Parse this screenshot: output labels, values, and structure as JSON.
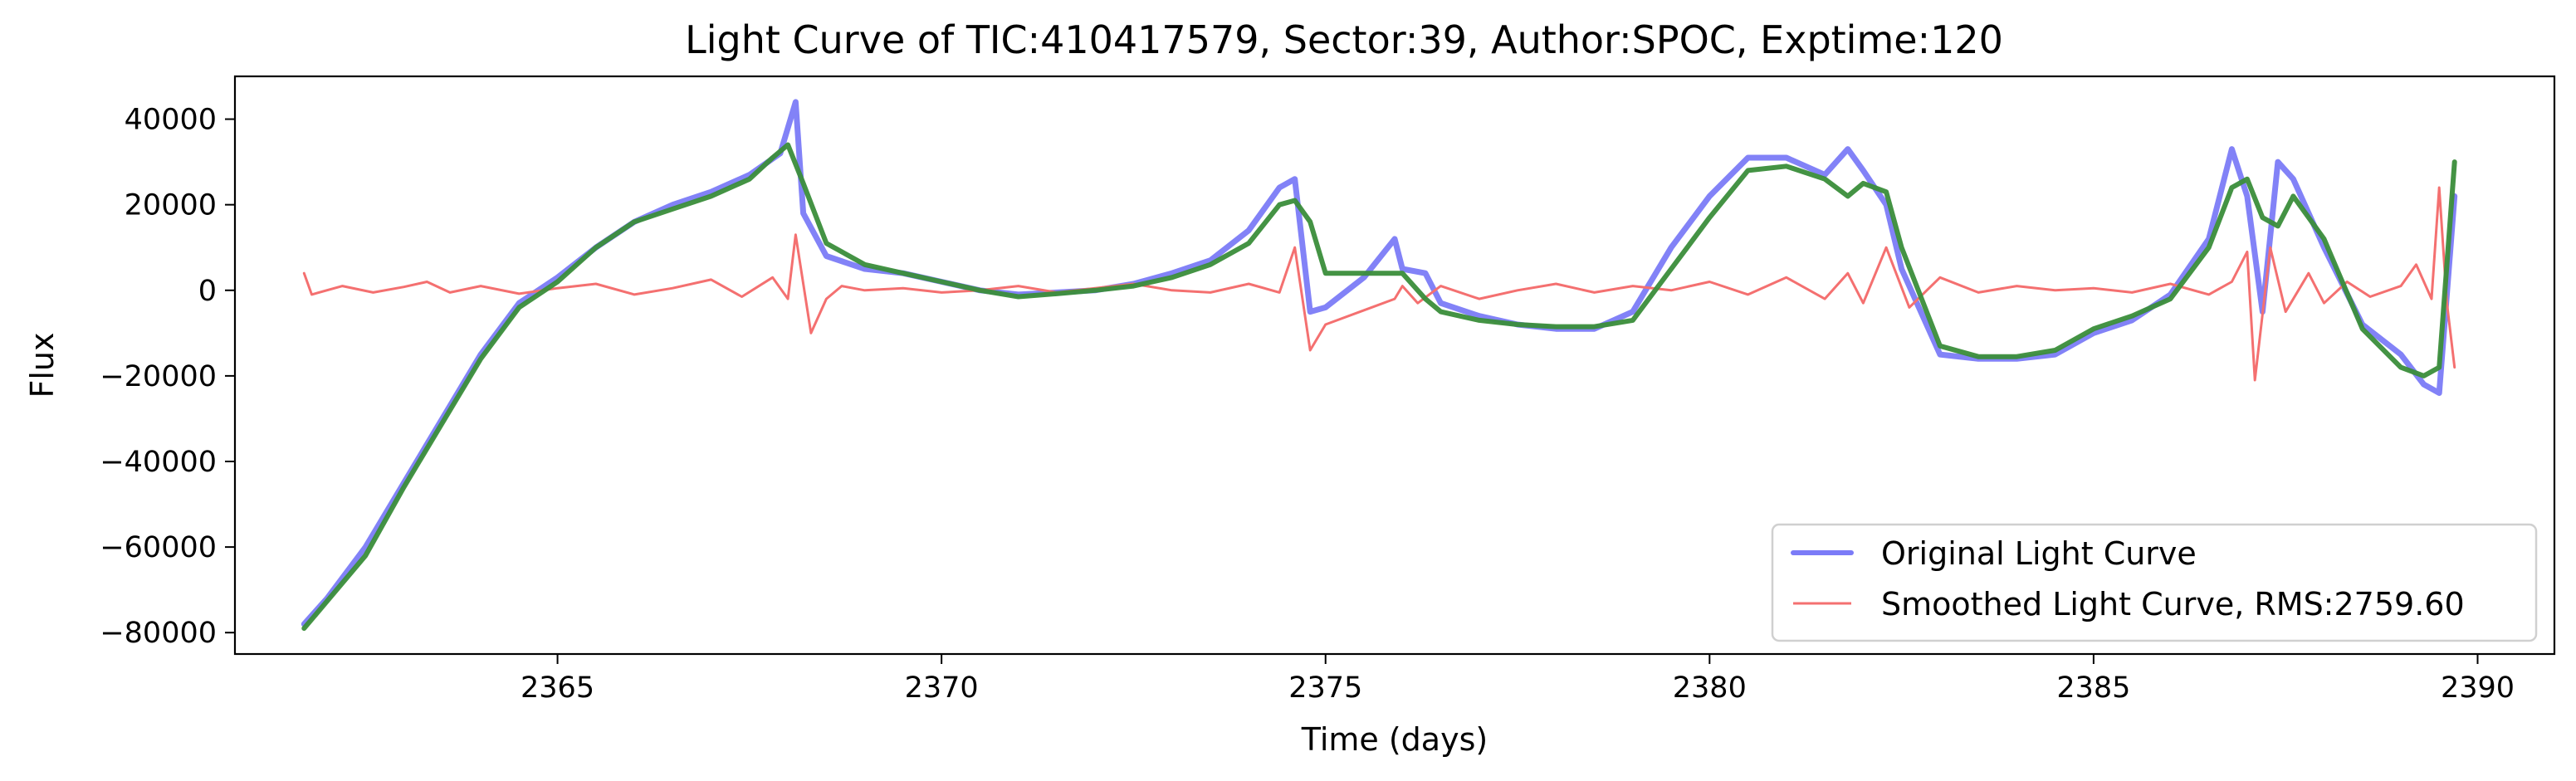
{
  "chart_data": {
    "type": "line",
    "title": "Light Curve of TIC:410417579, Sector:39, Author:SPOC, Exptime:120",
    "xlabel": "Time (days)",
    "ylabel": "Flux",
    "xlim": [
      2360.8,
      2391.0
    ],
    "ylim": [
      -85000,
      50000
    ],
    "xticks": [
      2365,
      2370,
      2375,
      2380,
      2385,
      2390
    ],
    "yticks": [
      40000,
      20000,
      0,
      -20000,
      -40000,
      -60000,
      -80000
    ],
    "xtick_labels": [
      "2365",
      "2370",
      "2375",
      "2380",
      "2385",
      "2390"
    ],
    "ytick_labels": [
      "40000",
      "20000",
      "0",
      "−20000",
      "−40000",
      "−60000",
      "−80000"
    ],
    "grid": false,
    "legend_position": "lower-right",
    "series": [
      {
        "name": "Original Light Curve",
        "color": "#7b7bf7",
        "style": "thick",
        "x": [
          2361.7,
          2362.0,
          2362.5,
          2363.0,
          2363.5,
          2364.0,
          2364.5,
          2365.0,
          2365.5,
          2366.0,
          2366.5,
          2367.0,
          2367.5,
          2367.9,
          2368.1,
          2368.2,
          2368.5,
          2369.0,
          2369.5,
          2370.0,
          2370.5,
          2371.0,
          2371.5,
          2372.0,
          2372.5,
          2373.0,
          2373.5,
          2374.0,
          2374.4,
          2374.6,
          2374.8,
          2375.0,
          2375.5,
          2375.9,
          2376.0,
          2376.3,
          2376.5,
          2377.0,
          2377.5,
          2378.0,
          2378.5,
          2379.0,
          2379.5,
          2380.0,
          2380.5,
          2381.0,
          2381.5,
          2381.8,
          2382.0,
          2382.3,
          2382.5,
          2383.0,
          2383.5,
          2384.0,
          2384.5,
          2385.0,
          2385.5,
          2386.0,
          2386.5,
          2386.8,
          2387.0,
          2387.2,
          2387.4,
          2387.6,
          2388.0,
          2388.5,
          2389.0,
          2389.3,
          2389.5,
          2389.7
        ],
        "y": [
          -78000,
          -72000,
          -60000,
          -45000,
          -30000,
          -15000,
          -3000,
          3000,
          10000,
          16000,
          20000,
          23000,
          27000,
          32000,
          44000,
          18000,
          8000,
          5000,
          4000,
          2000,
          0,
          -1000,
          -500,
          0,
          1500,
          4000,
          7000,
          14000,
          24000,
          26000,
          -5000,
          -4000,
          3000,
          12000,
          5000,
          4000,
          -3000,
          -6000,
          -8000,
          -9000,
          -9000,
          -5000,
          10000,
          22000,
          31000,
          31000,
          27000,
          33000,
          28000,
          20000,
          5000,
          -15000,
          -16000,
          -16000,
          -15000,
          -10000,
          -7000,
          -1000,
          12000,
          33000,
          22000,
          -5000,
          30000,
          26000,
          10000,
          -8000,
          -15000,
          -22000,
          -24000,
          22000
        ]
      },
      {
        "name": "Smoothed Light Curve, RMS:2759.60",
        "color": "#f47070",
        "style": "thin",
        "x": [
          2361.7,
          2361.8,
          2362.2,
          2362.6,
          2363.0,
          2363.3,
          2363.6,
          2364.0,
          2364.5,
          2365.0,
          2365.5,
          2366.0,
          2366.5,
          2367.0,
          2367.4,
          2367.8,
          2368.0,
          2368.1,
          2368.3,
          2368.5,
          2368.7,
          2369.0,
          2369.5,
          2370.0,
          2370.5,
          2371.0,
          2371.5,
          2372.0,
          2372.5,
          2373.0,
          2373.5,
          2374.0,
          2374.4,
          2374.6,
          2374.8,
          2375.0,
          2375.9,
          2376.0,
          2376.2,
          2376.5,
          2377.0,
          2377.5,
          2378.0,
          2378.5,
          2379.0,
          2379.5,
          2380.0,
          2380.5,
          2381.0,
          2381.5,
          2381.8,
          2382.0,
          2382.3,
          2382.6,
          2383.0,
          2383.5,
          2384.0,
          2384.5,
          2385.0,
          2385.5,
          2386.0,
          2386.5,
          2386.8,
          2387.0,
          2387.1,
          2387.3,
          2387.5,
          2387.8,
          2388.0,
          2388.3,
          2388.6,
          2389.0,
          2389.2,
          2389.4,
          2389.5,
          2389.6,
          2389.7
        ],
        "y": [
          4000,
          -1000,
          1000,
          -500,
          800,
          2000,
          -500,
          1000,
          -800,
          500,
          1500,
          -1000,
          500,
          2500,
          -1500,
          3000,
          -2000,
          13000,
          -10000,
          -2000,
          1000,
          0,
          500,
          -500,
          0,
          1000,
          -500,
          500,
          1500,
          0,
          -500,
          1500,
          -500,
          10000,
          -14000,
          -8000,
          -2000,
          1000,
          -3000,
          1000,
          -2000,
          0,
          1500,
          -500,
          1000,
          0,
          2000,
          -1000,
          3000,
          -2000,
          4000,
          -3000,
          10000,
          -4000,
          3000,
          -500,
          1000,
          0,
          500,
          -500,
          1500,
          -1000,
          2000,
          9000,
          -21000,
          10000,
          -5000,
          4000,
          -3000,
          2000,
          -1500,
          1000,
          6000,
          -2000,
          24000,
          -3000,
          -18000
        ]
      },
      {
        "name": "",
        "color": "#3a8d3a",
        "style": "trend",
        "x": [
          2361.7,
          2362.5,
          2363.0,
          2363.5,
          2364.0,
          2364.5,
          2365.0,
          2365.5,
          2366.0,
          2366.5,
          2367.0,
          2367.5,
          2367.8,
          2368.0,
          2368.2,
          2368.5,
          2369.0,
          2369.5,
          2370.0,
          2370.5,
          2371.0,
          2371.5,
          2372.0,
          2372.5,
          2373.0,
          2373.5,
          2374.0,
          2374.4,
          2374.6,
          2374.8,
          2375.0,
          2375.5,
          2376.0,
          2376.3,
          2376.5,
          2377.0,
          2377.5,
          2378.0,
          2378.5,
          2379.0,
          2379.5,
          2380.0,
          2380.5,
          2381.0,
          2381.5,
          2381.8,
          2382.0,
          2382.3,
          2382.5,
          2383.0,
          2383.5,
          2384.0,
          2384.5,
          2385.0,
          2385.5,
          2386.0,
          2386.5,
          2386.8,
          2387.0,
          2387.2,
          2387.4,
          2387.6,
          2388.0,
          2388.5,
          2389.0,
          2389.3,
          2389.5,
          2389.7
        ],
        "y": [
          -79000,
          -62000,
          -46000,
          -31000,
          -16000,
          -4000,
          2000,
          10000,
          16000,
          19000,
          22000,
          26000,
          31000,
          34000,
          25000,
          11000,
          6000,
          4000,
          2000,
          0,
          -1500,
          -800,
          0,
          1000,
          3000,
          6000,
          11000,
          20000,
          21000,
          16000,
          4000,
          4000,
          4000,
          -2000,
          -5000,
          -7000,
          -8000,
          -8500,
          -8500,
          -7000,
          5000,
          17000,
          28000,
          29000,
          26000,
          22000,
          25000,
          23000,
          10000,
          -13000,
          -15500,
          -15500,
          -14000,
          -9000,
          -6000,
          -2000,
          10000,
          24000,
          26000,
          17000,
          15000,
          22000,
          12000,
          -9000,
          -18000,
          -20000,
          -18000,
          30000
        ]
      }
    ]
  }
}
